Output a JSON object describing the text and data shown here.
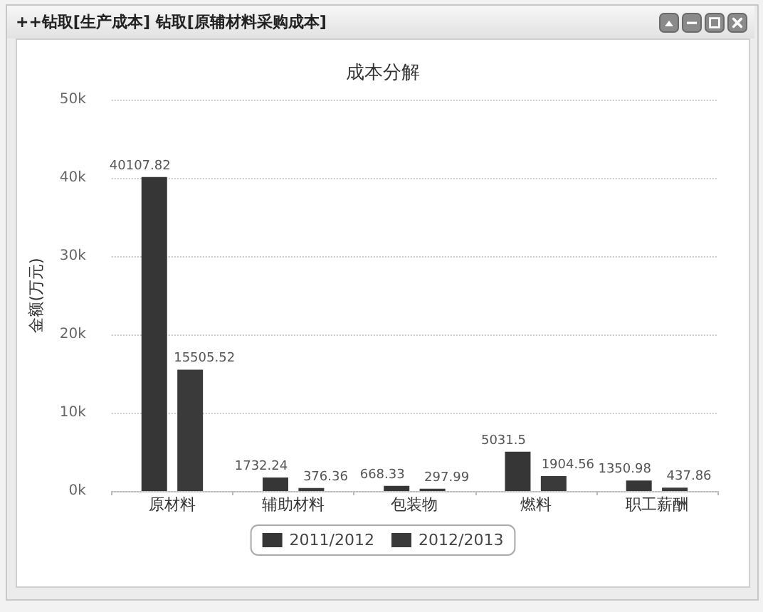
{
  "chart_data": {
    "type": "bar",
    "title": "成本分解",
    "ylabel": "金额(万元)",
    "annotations": [
      "++钻取[生产成本] 钻取[原辅材料采购成本]"
    ],
    "categories": [
      "原材料",
      "辅助材料",
      "包装物",
      "燃料",
      "职工薪酬"
    ],
    "series": [
      {
        "name": "2011/2012",
        "color": "#363636",
        "values": [
          40107.82,
          1732.24,
          668.33,
          5031.5,
          1350.98
        ]
      },
      {
        "name": "2012/2013",
        "color": "#3a3a3a",
        "values": [
          15505.52,
          376.36,
          297.99,
          1904.56,
          437.86
        ]
      }
    ],
    "ylim": [
      0,
      50000
    ],
    "yticks": [
      {
        "value": 0,
        "label": "0k"
      },
      {
        "value": 10000,
        "label": "10k"
      },
      {
        "value": 20000,
        "label": "20k"
      },
      {
        "value": 30000,
        "label": "30k"
      },
      {
        "value": 40000,
        "label": "40k"
      },
      {
        "value": 50000,
        "label": "50k"
      }
    ],
    "grid": true,
    "legend": "bottom",
    "data_labels": true
  }
}
